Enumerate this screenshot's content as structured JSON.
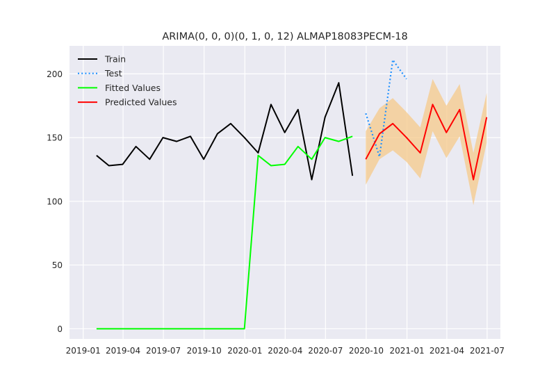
{
  "chart_data": {
    "type": "line",
    "title": "ARIMA(0, 0, 0)(0, 1, 0, 12) ALMAP18083PECM-18",
    "xlabel": "",
    "ylabel": "",
    "xlim": [
      "2018-12-01",
      "2021-07-31"
    ],
    "ylim": [
      -8,
      222
    ],
    "grid": true,
    "legend_position": "top-left",
    "x_ticks": [
      "2019-01-01",
      "2019-04-01",
      "2019-07-01",
      "2019-10-01",
      "2020-01-01",
      "2020-04-01",
      "2020-07-01",
      "2020-10-01",
      "2021-01-01",
      "2021-04-01",
      "2021-07-01"
    ],
    "x_tick_labels": [
      "2019-01",
      "2019-04",
      "2019-07",
      "2019-10",
      "2020-01",
      "2020-04",
      "2020-07",
      "2020-10",
      "2021-01",
      "2021-04",
      "2021-07"
    ],
    "y_ticks": [
      0,
      50,
      100,
      150,
      200
    ],
    "y_tick_labels": [
      "0",
      "50",
      "100",
      "150",
      "200"
    ],
    "series": [
      {
        "name": "Train",
        "color": "#000000",
        "style": "solid",
        "x": [
          "2019-01-31",
          "2019-02-28",
          "2019-03-31",
          "2019-04-30",
          "2019-05-31",
          "2019-06-30",
          "2019-07-31",
          "2019-08-31",
          "2019-09-30",
          "2019-10-31",
          "2019-11-30",
          "2019-12-31",
          "2020-01-31",
          "2020-02-29",
          "2020-03-31",
          "2020-04-30",
          "2020-05-31",
          "2020-06-30",
          "2020-07-31",
          "2020-08-31"
        ],
        "y": [
          136,
          128,
          129,
          143,
          133,
          150,
          147,
          151,
          133,
          153,
          161,
          150,
          138,
          176,
          154,
          172,
          117,
          166,
          193,
          120
        ]
      },
      {
        "name": "Test",
        "color": "#1e90ff",
        "style": "dotted",
        "x": [
          "2020-09-30",
          "2020-10-31",
          "2020-11-30",
          "2020-12-31"
        ],
        "y": [
          169,
          135,
          211,
          196
        ]
      },
      {
        "name": "Fitted Values",
        "color": "#00ff00",
        "style": "solid",
        "x": [
          "2019-01-31",
          "2019-02-28",
          "2019-03-31",
          "2019-04-30",
          "2019-05-31",
          "2019-06-30",
          "2019-07-31",
          "2019-08-31",
          "2019-09-30",
          "2019-10-31",
          "2019-11-30",
          "2019-12-31",
          "2020-01-31",
          "2020-02-29",
          "2020-03-31",
          "2020-04-30",
          "2020-05-31",
          "2020-06-30",
          "2020-07-31",
          "2020-08-31"
        ],
        "y": [
          0,
          0,
          0,
          0,
          0,
          0,
          0,
          0,
          0,
          0,
          0,
          0,
          136,
          128,
          129,
          143,
          133,
          150,
          147,
          151
        ]
      },
      {
        "name": "Predicted Values",
        "color": "#ff0000",
        "style": "solid",
        "x": [
          "2020-09-30",
          "2020-10-31",
          "2020-11-30",
          "2020-12-31",
          "2021-01-31",
          "2021-02-28",
          "2021-03-31",
          "2021-04-30",
          "2021-05-31",
          "2021-06-30"
        ],
        "y": [
          133,
          153,
          161,
          150,
          138,
          176,
          154,
          172,
          117,
          166
        ]
      }
    ],
    "confidence_band": {
      "color": "#f5c98a",
      "x": [
        "2020-09-30",
        "2020-10-31",
        "2020-11-30",
        "2020-12-31",
        "2021-01-31",
        "2021-02-28",
        "2021-03-31",
        "2021-04-30",
        "2021-05-31",
        "2021-06-30"
      ],
      "lower": [
        113,
        133,
        140,
        131,
        118,
        155,
        134,
        151,
        97,
        146
      ],
      "upper": [
        155,
        173,
        181,
        170,
        158,
        196,
        175,
        192,
        138,
        185
      ]
    }
  }
}
